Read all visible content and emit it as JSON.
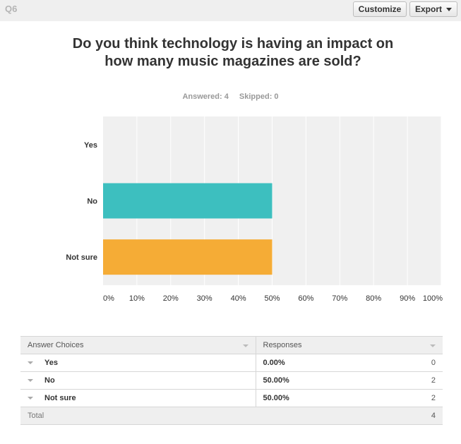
{
  "header": {
    "question_label": "Q6",
    "customize_label": "Customize",
    "export_label": "Export"
  },
  "title": "Do you think technology is having an impact on how many music magazines are sold?",
  "stats": {
    "answered": "Answered: 4",
    "skipped": "Skipped: 0"
  },
  "chart_data": {
    "type": "bar",
    "orientation": "horizontal",
    "categories": [
      "Yes",
      "No",
      "Not sure"
    ],
    "values": [
      0,
      50,
      50
    ],
    "colors": [
      "#3dbfbf",
      "#3dbfbf",
      "#f5ac36"
    ],
    "xlim": [
      0,
      100
    ],
    "ticks": [
      "0%",
      "10%",
      "20%",
      "30%",
      "40%",
      "50%",
      "60%",
      "70%",
      "80%",
      "90%",
      "100%"
    ],
    "grid": true,
    "plot_background": "#f0f0f0"
  },
  "table": {
    "col_choices": "Answer Choices",
    "col_responses": "Responses",
    "rows": [
      {
        "choice": "Yes",
        "percent": "0.00%",
        "count": "0"
      },
      {
        "choice": "No",
        "percent": "50.00%",
        "count": "2"
      },
      {
        "choice": "Not sure",
        "percent": "50.00%",
        "count": "2"
      }
    ],
    "total_label": "Total",
    "total_count": "4"
  }
}
